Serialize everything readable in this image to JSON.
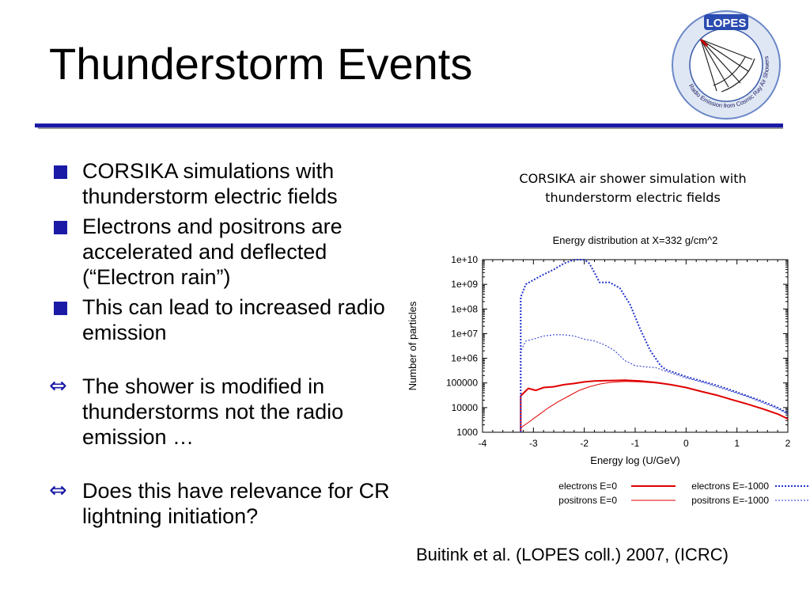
{
  "slide": {
    "title": "Thunderstorm Events",
    "logo": {
      "text": "LOPES",
      "ring_text": "Radio Emission from Cosmic Ray Air Showers"
    },
    "bullets": [
      {
        "marker": "square",
        "text": "CORSIKA simulations with thunderstorm electric fields"
      },
      {
        "marker": "square",
        "text": "Electrons and positrons are accelerated and deflected (“Electron rain”)"
      },
      {
        "marker": "square",
        "text": "This can lead to increased radio emission"
      },
      {
        "marker": "arrow",
        "text": "The shower is modified in thunderstorms not the radio emission …"
      },
      {
        "marker": "arrow",
        "text": "Does this have relevance for CR lightning initiation?"
      }
    ],
    "caption": "CORSIKA air shower simulation with thunderstorm electric fields",
    "credit": "Buitink et al. (LOPES coll.) 2007, (ICRC)",
    "colors": {
      "accent": "#1a1aa6",
      "red": "#e00000",
      "blue": "#2233cc"
    }
  },
  "chart_data": {
    "type": "line",
    "title": "Energy distribution at X=332 g/cm^2",
    "xlabel": "Energy log (U/GeV)",
    "ylabel": "Number of particles",
    "xlim": [
      -4,
      2
    ],
    "ylim": [
      1000,
      10000000000
    ],
    "yscale": "log",
    "xticks": [
      "-4",
      "-3",
      "-2",
      "-1",
      "0",
      "1",
      "2"
    ],
    "yticks": [
      "1000",
      "10000",
      "100000",
      "1e+06",
      "1e+07",
      "1e+08",
      "1e+09",
      "1e+10"
    ],
    "legend_position": "bottom",
    "series": [
      {
        "name": "electrons E=0",
        "style": "solid-thick",
        "color": "#e00000",
        "x": [
          -3.25,
          -3.25,
          -3.1,
          -2.95,
          -2.8,
          -2.6,
          -2.4,
          -2.2,
          -2.0,
          -1.8,
          -1.5,
          -1.2,
          -0.9,
          -0.6,
          -0.3,
          0.0,
          0.3,
          0.6,
          0.9,
          1.2,
          1.5,
          1.8,
          2.0
        ],
        "y": [
          1000,
          30000,
          60000,
          50000,
          65000,
          70000,
          85000,
          95000,
          110000,
          120000,
          125000,
          130000,
          120000,
          105000,
          85000,
          65000,
          45000,
          32000,
          21000,
          14000,
          9000,
          5500,
          3500
        ]
      },
      {
        "name": "positrons E=0",
        "style": "solid-thin",
        "color": "#e00000",
        "x": [
          -3.25,
          -3.25,
          -3.1,
          -2.9,
          -2.7,
          -2.5,
          -2.3,
          -2.1,
          -1.9,
          -1.7,
          -1.5,
          -1.2,
          -0.9,
          -0.6,
          -0.3,
          0.0
        ],
        "y": [
          1000,
          1500,
          2500,
          5000,
          10000,
          18000,
          30000,
          50000,
          70000,
          90000,
          105000,
          115000,
          110000,
          100000,
          85000,
          65000
        ]
      },
      {
        "name": "electrons E=-1000",
        "style": "dotted-thick",
        "color": "#2233cc",
        "x": [
          -3.25,
          -3.25,
          -3.15,
          -3.0,
          -2.8,
          -2.6,
          -2.4,
          -2.2,
          -2.0,
          -1.9,
          -1.8,
          -1.7,
          -1.5,
          -1.3,
          -1.1,
          -0.9,
          -0.7,
          -0.5,
          -0.4,
          -0.2,
          0.0,
          0.3,
          0.6,
          0.9,
          1.2,
          1.5,
          1.8,
          2.0
        ],
        "y": [
          1000,
          300000000,
          1000000000,
          1500000000,
          2500000000,
          4000000000,
          7000000000,
          10000000000,
          10000000000,
          7000000000,
          3000000000,
          1200000000,
          1200000000,
          700000000,
          150000000,
          15000000,
          2000000,
          500000,
          350000,
          250000,
          180000,
          120000,
          80000,
          50000,
          30000,
          18000,
          10000,
          6000
        ]
      },
      {
        "name": "positrons E=-1000",
        "style": "dotted-thin",
        "color": "#2233cc",
        "x": [
          -3.25,
          -3.25,
          -3.15,
          -3.0,
          -2.8,
          -2.6,
          -2.4,
          -2.2,
          -2.0,
          -1.8,
          -1.6,
          -1.4,
          -1.2,
          -1.0,
          -0.8,
          -0.6,
          -0.4,
          -0.2,
          0.0,
          0.3,
          0.6,
          0.9,
          1.2,
          1.5,
          1.8,
          2.0
        ],
        "y": [
          1000,
          2000000,
          5000000,
          6000000,
          8000000,
          9000000,
          9000000,
          8000000,
          6000000,
          5000000,
          3500000,
          2000000,
          800000,
          500000,
          450000,
          420000,
          300000,
          220000,
          160000,
          110000,
          70000,
          45000,
          28000,
          16000,
          9000,
          5500
        ]
      }
    ]
  }
}
